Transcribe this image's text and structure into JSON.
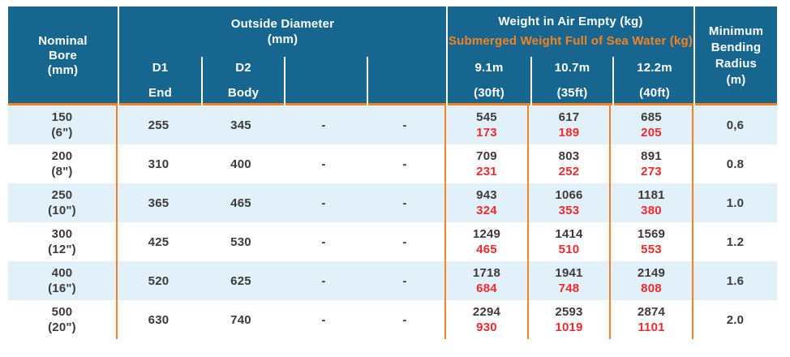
{
  "colors": {
    "header_bg": "#166690",
    "header_text": "#FFFFFF",
    "accent_orange": "#F5831F",
    "submerged_red": "#EE2A2C",
    "row_alt_bg": "#E2F1F9",
    "row_bg": "#FFFFFF",
    "body_text": "#3B3B3B"
  },
  "header": {
    "nominal_bore": {
      "line1": "Nominal",
      "line2": "Bore",
      "line3": "(mm)"
    },
    "outside_diameter": {
      "title": "Outside Diameter",
      "unit": "(mm)",
      "subcols": [
        {
          "l1": "D1",
          "l2": "End"
        },
        {
          "l1": "D2",
          "l2": "Body"
        },
        {
          "l1": "",
          "l2": ""
        },
        {
          "l1": "",
          "l2": ""
        }
      ]
    },
    "weight": {
      "air_title": "Weight in Air Empty (kg)",
      "submerged_title": "Submerged Weight Full of Sea Water (kg)",
      "subcols": [
        {
          "len": "9.1m",
          "feet": "(30ft)"
        },
        {
          "len": "10.7m",
          "feet": "(35ft)"
        },
        {
          "len": "12.2m",
          "feet": "(40ft)"
        }
      ]
    },
    "min_bending_radius": {
      "line1": "Minimum",
      "line2": "Bending",
      "line3": "Radius",
      "line4": "(m)"
    }
  },
  "rows": [
    {
      "bore_mm": "150",
      "bore_inch": "(6\")",
      "d1": "255",
      "d2": "345",
      "dash1": "-",
      "dash2": "-",
      "weights": [
        {
          "air": "545",
          "sub": "173"
        },
        {
          "air": "617",
          "sub": "189"
        },
        {
          "air": "685",
          "sub": "205"
        }
      ],
      "mbr": "0,6"
    },
    {
      "bore_mm": "200",
      "bore_inch": "(8\")",
      "d1": "310",
      "d2": "400",
      "dash1": "-",
      "dash2": "-",
      "weights": [
        {
          "air": "709",
          "sub": "231"
        },
        {
          "air": "803",
          "sub": "252"
        },
        {
          "air": "891",
          "sub": "273"
        }
      ],
      "mbr": "0.8"
    },
    {
      "bore_mm": "250",
      "bore_inch": "(10\")",
      "d1": "365",
      "d2": "465",
      "dash1": "-",
      "dash2": "-",
      "weights": [
        {
          "air": "943",
          "sub": "324"
        },
        {
          "air": "1066",
          "sub": "353"
        },
        {
          "air": "1181",
          "sub": "380"
        }
      ],
      "mbr": "1.0"
    },
    {
      "bore_mm": "300",
      "bore_inch": "(12\")",
      "d1": "425",
      "d2": "530",
      "dash1": "-",
      "dash2": "-",
      "weights": [
        {
          "air": "1249",
          "sub": "465"
        },
        {
          "air": "1414",
          "sub": "510"
        },
        {
          "air": "1569",
          "sub": "553"
        }
      ],
      "mbr": "1.2"
    },
    {
      "bore_mm": "400",
      "bore_inch": "(16\")",
      "d1": "520",
      "d2": "625",
      "dash1": "-",
      "dash2": "-",
      "weights": [
        {
          "air": "1718",
          "sub": "684"
        },
        {
          "air": "1941",
          "sub": "748"
        },
        {
          "air": "2149",
          "sub": "808"
        }
      ],
      "mbr": "1.6"
    },
    {
      "bore_mm": "500",
      "bore_inch": "(20\")",
      "d1": "630",
      "d2": "740",
      "dash1": "-",
      "dash2": "-",
      "weights": [
        {
          "air": "2294",
          "sub": "930"
        },
        {
          "air": "2593",
          "sub": "1019"
        },
        {
          "air": "2874",
          "sub": "1101"
        }
      ],
      "mbr": "2.0"
    }
  ]
}
